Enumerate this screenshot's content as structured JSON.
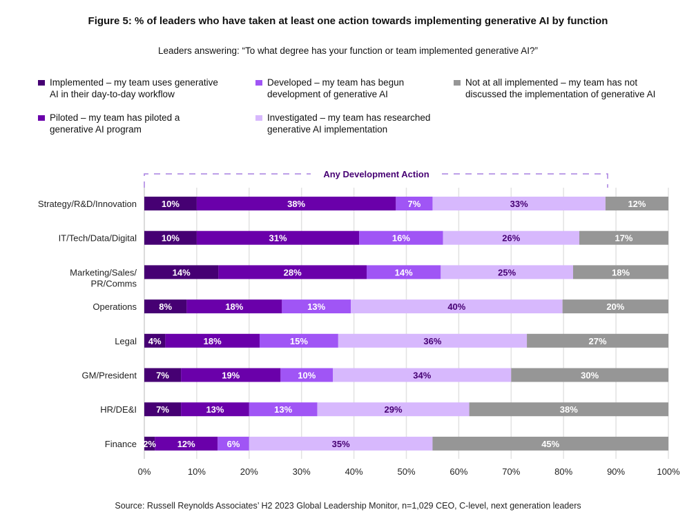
{
  "title": "Figure 5: % of leaders who have taken at least one action towards implementing generative AI by function",
  "subtitle": "Leaders answering: “To what degree has your function or team implemented generative AI?”",
  "source": "Source: Russell Reynolds Associates’ H2 2023 Global Leadership Monitor, n=1,029 CEO, C-level, next generation leaders",
  "legend": [
    {
      "label1": "Implemented – my team uses generative",
      "label2": "AI in their day-to-day workflow"
    },
    {
      "label1": "Developed – my team has begun",
      "label2": "development of generative AI"
    },
    {
      "label1": "Not at all implemented – my team has not",
      "label2": "discussed the implementation of generative AI"
    },
    {
      "label1": "Piloted – my team has piloted a",
      "label2": "generative AI program"
    },
    {
      "label1": "Investigated – my team has researched",
      "label2": "generative AI implementation"
    }
  ],
  "chart_data": {
    "type": "bar",
    "orientation": "horizontal",
    "stacked": true,
    "title": "Figure 5: % of leaders who have taken at least one action towards implementing generative AI by function",
    "annotation": "Any Development Action",
    "categories": [
      [
        "Strategy/R&D/Innovation"
      ],
      [
        "IT/Tech/Data/Digital"
      ],
      [
        "Marketing/Sales/",
        "PR/Comms"
      ],
      [
        "Operations"
      ],
      [
        "Legal"
      ],
      [
        "GM/President"
      ],
      [
        "HR/DE&I"
      ],
      [
        "Finance"
      ]
    ],
    "series": [
      {
        "name": "Implemented",
        "color": "#460073",
        "label_color": "#ffffff",
        "values": [
          10,
          10,
          14,
          8,
          4,
          7,
          7,
          2
        ]
      },
      {
        "name": "Piloted",
        "color": "#6a00aa",
        "label_color": "#ffffff",
        "values": [
          38,
          31,
          28,
          18,
          18,
          19,
          13,
          12
        ]
      },
      {
        "name": "Developed",
        "color": "#a055f5",
        "label_color": "#ffffff",
        "values": [
          7,
          16,
          14,
          13,
          15,
          10,
          13,
          6
        ]
      },
      {
        "name": "Investigated",
        "color": "#d7b8fd",
        "label_color": "#460073",
        "values": [
          33,
          26,
          25,
          40,
          36,
          34,
          29,
          35
        ]
      },
      {
        "name": "Not at all implemented",
        "color": "#969696",
        "label_color": "#ffffff",
        "values": [
          12,
          17,
          18,
          20,
          27,
          30,
          38,
          45
        ]
      }
    ],
    "xticks": [
      "0%",
      "10%",
      "20%",
      "30%",
      "40%",
      "50%",
      "60%",
      "70%",
      "80%",
      "90%",
      "100%"
    ],
    "xlim": [
      0,
      100
    ],
    "grid": true
  }
}
